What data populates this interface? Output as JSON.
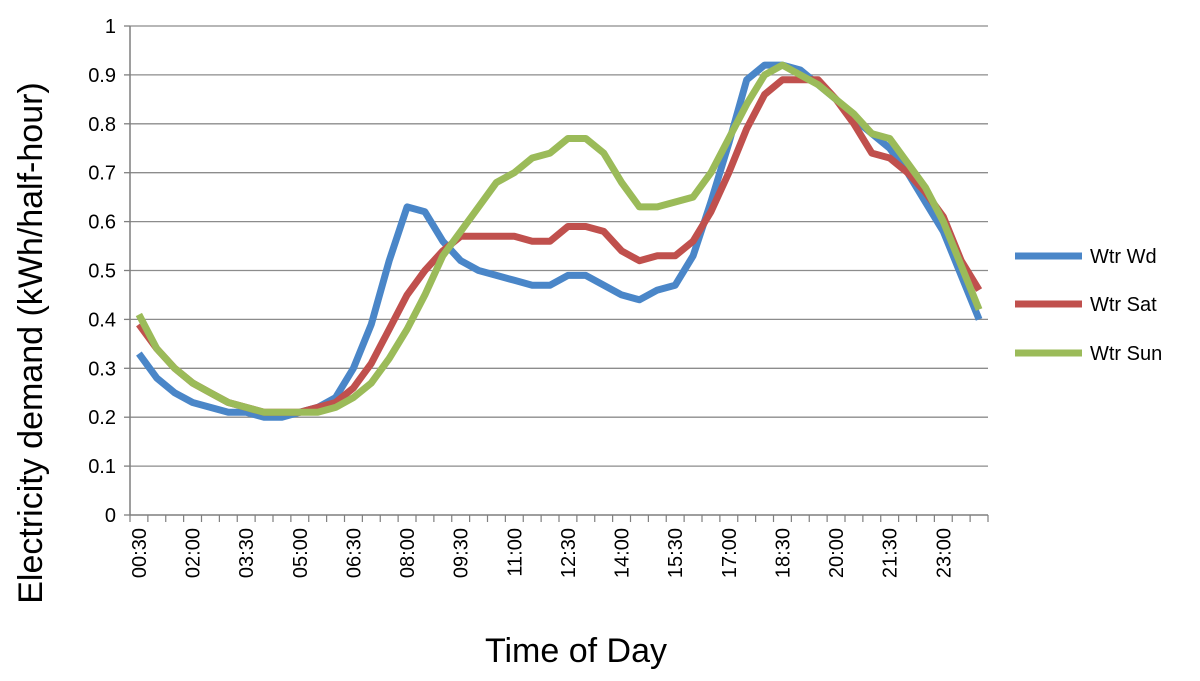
{
  "chart_data": {
    "type": "line",
    "title": "",
    "xlabel": "Time of Day",
    "ylabel": "Electricity demand (kWh/half-hour)",
    "ylim": [
      0,
      1
    ],
    "yticks": [
      "0",
      "0.1",
      "0.2",
      "0.3",
      "0.4",
      "0.5",
      "0.6",
      "0.7",
      "0.8",
      "0.9",
      "1"
    ],
    "grid": "horizontal",
    "legend_position": "right",
    "x_tick_labels": [
      "00:30",
      "02:00",
      "03:30",
      "05:00",
      "06:30",
      "08:00",
      "09:30",
      "11:00",
      "12:30",
      "14:00",
      "15:30",
      "17:00",
      "18:30",
      "20:00",
      "21:30",
      "23:00"
    ],
    "x": [
      "00:30",
      "01:00",
      "01:30",
      "02:00",
      "02:30",
      "03:00",
      "03:30",
      "04:00",
      "04:30",
      "05:00",
      "05:30",
      "06:00",
      "06:30",
      "07:00",
      "07:30",
      "08:00",
      "08:30",
      "09:00",
      "09:30",
      "10:00",
      "10:30",
      "11:00",
      "11:30",
      "12:00",
      "12:30",
      "13:00",
      "13:30",
      "14:00",
      "14:30",
      "15:00",
      "15:30",
      "16:00",
      "16:30",
      "17:00",
      "17:30",
      "18:00",
      "18:30",
      "19:00",
      "19:30",
      "20:00",
      "20:30",
      "21:00",
      "21:30",
      "22:00",
      "22:30",
      "23:00",
      "23:30",
      "00:00"
    ],
    "series": [
      {
        "name": "Wtr Wd",
        "color": "#4a86c8",
        "values": [
          0.33,
          0.28,
          0.25,
          0.23,
          0.22,
          0.21,
          0.21,
          0.2,
          0.2,
          0.21,
          0.22,
          0.24,
          0.3,
          0.39,
          0.52,
          0.63,
          0.62,
          0.56,
          0.52,
          0.5,
          0.49,
          0.48,
          0.47,
          0.47,
          0.49,
          0.49,
          0.47,
          0.45,
          0.44,
          0.46,
          0.47,
          0.53,
          0.64,
          0.76,
          0.89,
          0.92,
          0.92,
          0.91,
          0.88,
          0.85,
          0.81,
          0.78,
          0.75,
          0.7,
          0.64,
          0.58,
          0.49,
          0.4
        ]
      },
      {
        "name": "Wtr Sat",
        "color": "#c0504d",
        "values": [
          0.39,
          0.34,
          0.3,
          0.27,
          0.25,
          0.23,
          0.22,
          0.21,
          0.21,
          0.21,
          0.22,
          0.23,
          0.26,
          0.31,
          0.38,
          0.45,
          0.5,
          0.54,
          0.57,
          0.57,
          0.57,
          0.57,
          0.56,
          0.56,
          0.59,
          0.59,
          0.58,
          0.54,
          0.52,
          0.53,
          0.53,
          0.56,
          0.62,
          0.7,
          0.79,
          0.86,
          0.89,
          0.89,
          0.89,
          0.85,
          0.8,
          0.74,
          0.73,
          0.7,
          0.66,
          0.61,
          0.52,
          0.46
        ]
      },
      {
        "name": "Wtr Sun",
        "color": "#9bbb59",
        "values": [
          0.41,
          0.34,
          0.3,
          0.27,
          0.25,
          0.23,
          0.22,
          0.21,
          0.21,
          0.21,
          0.21,
          0.22,
          0.24,
          0.27,
          0.32,
          0.38,
          0.45,
          0.53,
          0.58,
          0.63,
          0.68,
          0.7,
          0.73,
          0.74,
          0.77,
          0.77,
          0.74,
          0.68,
          0.63,
          0.63,
          0.64,
          0.65,
          0.7,
          0.77,
          0.84,
          0.9,
          0.92,
          0.9,
          0.88,
          0.85,
          0.82,
          0.78,
          0.77,
          0.72,
          0.67,
          0.6,
          0.51,
          0.42
        ]
      }
    ]
  }
}
